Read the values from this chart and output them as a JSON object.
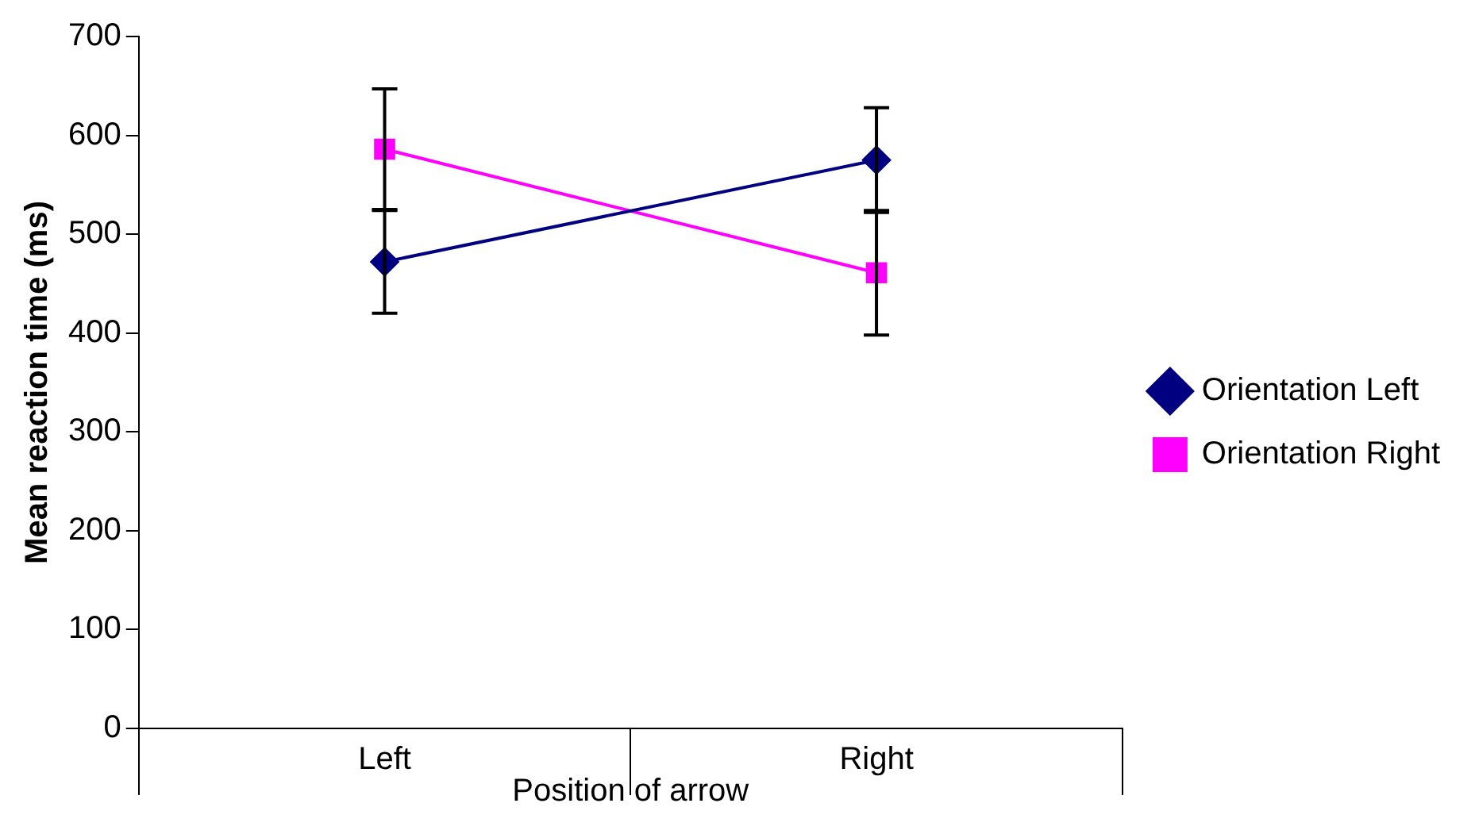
{
  "chart_data": {
    "type": "line",
    "xlabel": "Position of arrow",
    "ylabel": "Mean reaction time (ms)",
    "categories": [
      "Left",
      "Right"
    ],
    "series": [
      {
        "name": "Orientation Left",
        "color": "#000080",
        "marker": "diamond",
        "values": [
          472,
          575
        ],
        "errors": [
          52,
          53
        ]
      },
      {
        "name": "Orientation Right",
        "color": "#ff00ff",
        "marker": "square",
        "values": [
          586,
          461
        ],
        "errors": [
          61,
          63
        ]
      }
    ],
    "ylim": [
      0,
      700
    ],
    "yticks": [
      0,
      100,
      200,
      300,
      400,
      500,
      600,
      700
    ],
    "grid": false,
    "legend": "right"
  }
}
